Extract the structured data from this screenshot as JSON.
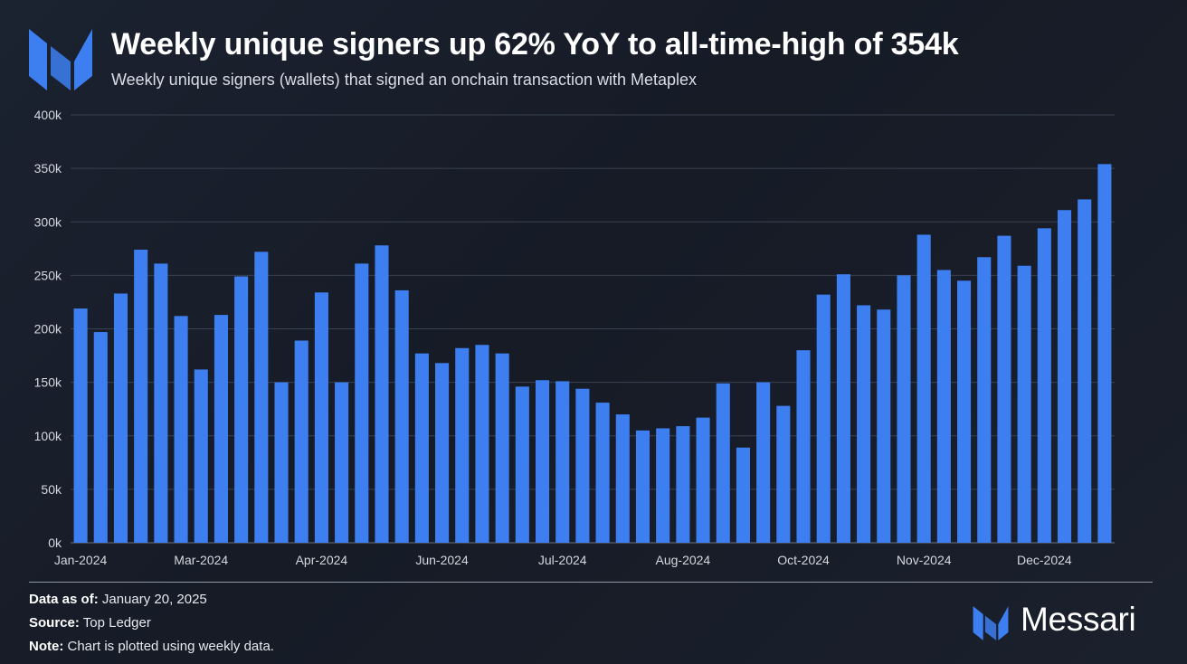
{
  "header": {
    "title": "Weekly unique signers up 62% YoY to all-time-high of 354k",
    "subtitle": "Weekly unique signers (wallets) that signed an onchain transaction with Metaplex"
  },
  "colors": {
    "bar": "#3d7ff0",
    "grid": "#3a4150",
    "axis_text": "#d4d8df",
    "logo": "#3d7ff0"
  },
  "chart_data": {
    "type": "bar",
    "x_tick_labels": [
      "Jan-2024",
      "Mar-2024",
      "Apr-2024",
      "Jun-2024",
      "Jul-2024",
      "Aug-2024",
      "Oct-2024",
      "Nov-2024",
      "Dec-2024"
    ],
    "x_tick_bar_index": [
      0,
      6,
      12,
      18,
      24,
      30,
      36,
      42,
      48
    ],
    "values": [
      219000,
      197000,
      233000,
      274000,
      261000,
      212000,
      162000,
      213000,
      249000,
      272000,
      150000,
      189000,
      234000,
      150000,
      261000,
      278000,
      236000,
      177000,
      168000,
      182000,
      185000,
      177000,
      146000,
      152000,
      151000,
      144000,
      131000,
      120000,
      105000,
      107000,
      109000,
      117000,
      149000,
      89000,
      150000,
      128000,
      180000,
      232000,
      251000,
      222000,
      218000,
      250000,
      288000,
      255000,
      245000,
      267000,
      287000,
      259000,
      294000,
      311000,
      321000,
      354000
    ],
    "ylim": [
      0,
      400000
    ],
    "y_ticks": [
      0,
      50000,
      100000,
      150000,
      200000,
      250000,
      300000,
      350000,
      400000
    ],
    "y_tick_labels": [
      "0k",
      "50k",
      "100k",
      "150k",
      "200k",
      "250k",
      "300k",
      "350k",
      "400k"
    ],
    "grid": true,
    "legend": "none"
  },
  "footer": {
    "data_as_of_label": "Data as of:",
    "data_as_of_value": " January 20, 2025",
    "source_label": "Source:",
    "source_value": " Top Ledger",
    "note_label": "Note:",
    "note_value": " Chart is plotted using weekly data.",
    "brand_name": "Messari"
  },
  "icons": {
    "header_logo": "messari-logo-icon",
    "footer_logo": "messari-logo-icon"
  }
}
